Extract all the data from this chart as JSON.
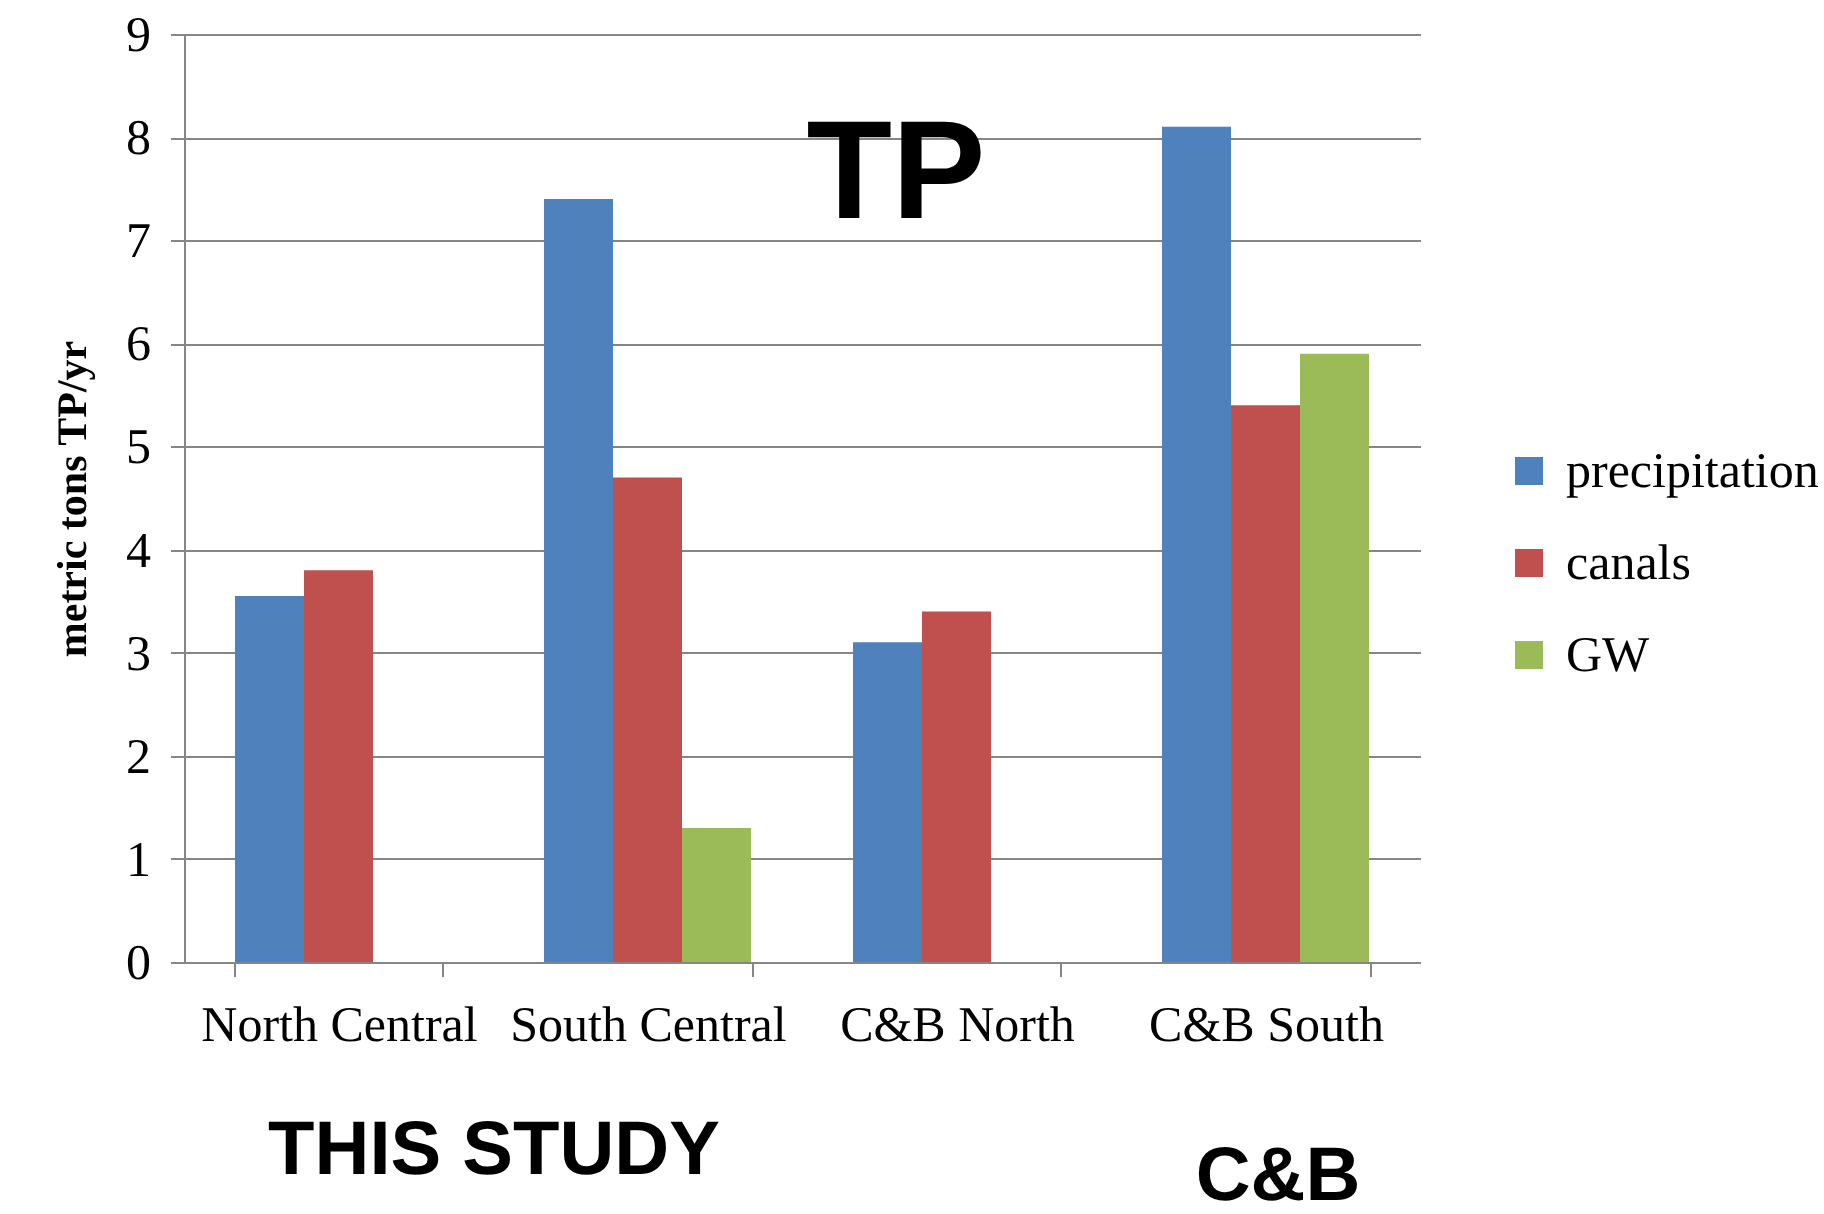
{
  "chart_data": {
    "type": "bar",
    "title": "TP",
    "ylabel": "metric tons TP/yr",
    "categories": [
      "North Central",
      "South Central",
      "C&B North",
      "C&B South"
    ],
    "series": [
      {
        "name": "precipitation",
        "color": "#4f81bd",
        "values": [
          3.55,
          7.4,
          3.1,
          8.1
        ]
      },
      {
        "name": "canals",
        "color": "#c0504d",
        "values": [
          3.8,
          4.7,
          3.4,
          5.4
        ]
      },
      {
        "name": "GW",
        "color": "#9bbb59",
        "values": [
          null,
          1.3,
          null,
          5.9
        ]
      }
    ],
    "ylim": [
      0,
      9
    ],
    "yticks": [
      0,
      1,
      2,
      3,
      4,
      5,
      6,
      7,
      8,
      9
    ],
    "grid": "y",
    "legend": "right",
    "annotations": [
      "THIS STUDY",
      "C&B"
    ]
  }
}
